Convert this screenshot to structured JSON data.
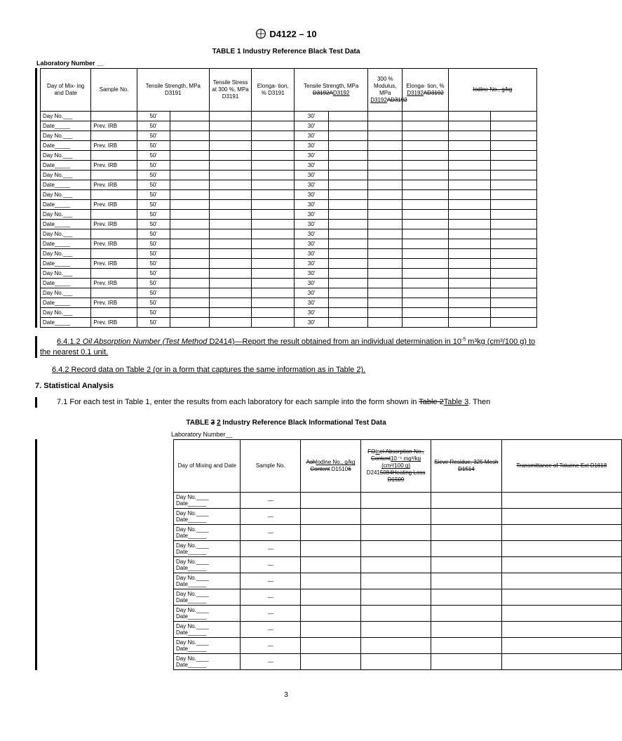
{
  "header": {
    "designation": "D4122 – 10"
  },
  "table1": {
    "title": "TABLE 1  Industry Reference Black Test Data",
    "lab_label": "Laboratory Number __",
    "cols": [
      "Day of Mix-\ning and Date",
      "Sample No.",
      "Tensile Strength, MPa D3191",
      "Tensile Stress at 300 %, MPa D3191",
      "Elonga-\ntion, % D3191",
      "Tensile Strength, MPa",
      "300 % Modulus, MPa",
      "Elonga-\ntion, %"
    ],
    "col6_sub_strike": "D3192A",
    "col6_sub_plain": "D3192",
    "col7_sub_plain": "D3192",
    "col7_sub_strike": "AD3192",
    "col8_sub_plain": "D3192",
    "col8_sub_strike": "AD3192",
    "col9_strike": "Iodine No., g/kg",
    "rows": 22,
    "day_label": "Day No.___",
    "date_label": "Date_____",
    "sample_prev": "Prev. IRB",
    "ts_val": "50'",
    "ts2_val": "30'"
  },
  "text": {
    "p1_lead": "6.4.1.2 ",
    "p1_italic": "Oil Absorption Number (Test Method ",
    "p1_after_italic": "D2414)—",
    "p1_rest": "Report the result obtained from an individual determination in 10",
    "p1_sup": "-5",
    "p1_tail": " m³kg (cm³/100 g) to the nearest 0.1 unit.",
    "p2_lead": "6.4.2 ",
    "p2_rest": "Record data on Table 2 (or in a form that captures the same information as in Table 2).",
    "sec7": "7. Statistical Analysis",
    "p3": "7.1  For each test in Table 1, enter the results from each laboratory for each sample into the form shown in ",
    "p3_strike": "Table 2",
    "p3_new": "Table 3",
    "p3_end": ". Then"
  },
  "table2": {
    "title_pre": "TABLE ",
    "title_strike": "3",
    "title_new": "2",
    "title_rest": "  Industry Reference Black Informational Test Data",
    "lab_label": "Laboratory Number__",
    "cols": {
      "c1": "Day of Mixing and Date",
      "c2": "Sample No.",
      "c3_strike1": "Ash",
      "c3_u": "Iodine No., g/kg",
      "c3_strike2": "Content",
      "c3_plain": " D1510",
      "c3_strike3": "6",
      "c4_strike1": "FO",
      "c4_u1": "in",
      "c4_strike2": "el Absorption No.,",
      "c4_strike3": " Content",
      "c4_u2": "10⁻⁵ mg³/kg (cm³/100 g)",
      "c4_plain": " D241",
      "c4_strike4": "5084Heating Loss D1509",
      "c5_strike": "Sieve Residue, 325 Mesh D1514",
      "c6_strike": "Transmittance of Toluene Ext D1618"
    },
    "rows": 11,
    "day_label": "Day No.____",
    "date_label": "Date______"
  },
  "page": "3"
}
